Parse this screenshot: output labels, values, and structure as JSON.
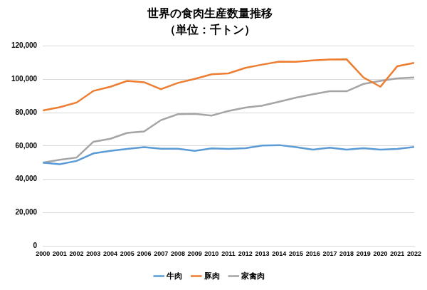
{
  "chart_data": {
    "type": "line",
    "title": "世界の食肉生産数量推移",
    "subtitle": "（単位：千トン）",
    "categories": [
      "2000",
      "2001",
      "2002",
      "2003",
      "2004",
      "2005",
      "2006",
      "2007",
      "2008",
      "2009",
      "2010",
      "2011",
      "2012",
      "2013",
      "2014",
      "2015",
      "2016",
      "2017",
      "2018",
      "2019",
      "2020",
      "2021",
      "2022"
    ],
    "series": [
      {
        "name": "牛肉",
        "color": "#5b9bd5",
        "values": [
          50000,
          49000,
          51000,
          55500,
          57000,
          58200,
          59300,
          58300,
          58300,
          57000,
          58500,
          58200,
          58600,
          60200,
          60500,
          59300,
          57800,
          59000,
          57800,
          58600,
          57800,
          58200,
          59400
        ]
      },
      {
        "name": "豚肉",
        "color": "#ed7d31",
        "values": [
          81300,
          83200,
          86000,
          93000,
          95500,
          99000,
          98200,
          94000,
          97800,
          100200,
          103000,
          103500,
          106800,
          108800,
          110600,
          110500,
          111300,
          111800,
          111900,
          101000,
          95500,
          107800,
          109800
        ]
      },
      {
        "name": "家禽肉",
        "color": "#a5a5a5",
        "values": [
          50000,
          51700,
          53000,
          62500,
          64300,
          67800,
          68700,
          75500,
          79000,
          79300,
          78200,
          81000,
          83000,
          84200,
          86500,
          89000,
          91000,
          92800,
          92800,
          97200,
          99000,
          100500,
          101000
        ]
      }
    ],
    "ylim": [
      0,
      120000
    ],
    "yticks": [
      0,
      {
        "value": 20000,
        "label": "20,000"
      },
      {
        "value": 40000,
        "label": "40,000"
      },
      {
        "value": 60000,
        "label": "60,000"
      },
      {
        "value": 80000,
        "label": "80,000"
      },
      {
        "value": 100000,
        "label": "100,000"
      },
      {
        "value": 120000,
        "label": "120,000"
      }
    ],
    "grid": true,
    "legend": "bottom"
  }
}
